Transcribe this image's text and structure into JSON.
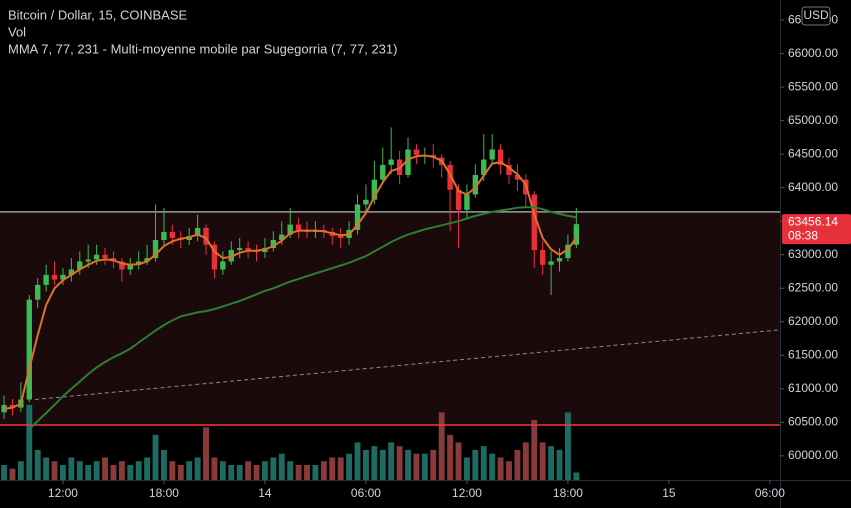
{
  "chart_data": {
    "type": "candlestick",
    "title": "Bitcoin / Dollar, 15, COINBASE",
    "legend_lines": [
      "Vol",
      "MMA 7, 77, 231 - Multi-moyenne mobile par Sugegorria (7, 77, 231)"
    ],
    "currency": "USD",
    "countdown": "08:38",
    "up_color": "#3cba54",
    "down_color": "#e8303a",
    "x": [
      8.5,
      9,
      9.5,
      10,
      10.5,
      11,
      11.5,
      12,
      12.5,
      13,
      13.5,
      14,
      14.5,
      15,
      15.5,
      16,
      16.5,
      17,
      17.5,
      18,
      18.5,
      19,
      19.5,
      20,
      20.5,
      21,
      21.5,
      22,
      22.5,
      23,
      23.5,
      24,
      24.5,
      25,
      25.5,
      26,
      26.5,
      27,
      27.5,
      28,
      28.5,
      29,
      29.5,
      30,
      30.5,
      31,
      31.5,
      32,
      32.5,
      33,
      33.5,
      34,
      34.5,
      35,
      35.5,
      36,
      36.5,
      37,
      37.5,
      38,
      38.5,
      39,
      39.5,
      40,
      40.5,
      41,
      41.5,
      42,
      42.5
    ],
    "open": [
      60650,
      60760,
      60720,
      60840,
      62330,
      62550,
      62700,
      62630,
      62700,
      62780,
      62900,
      62930,
      63000,
      62950,
      62900,
      62780,
      62850,
      62900,
      62950,
      63220,
      63340,
      63250,
      63220,
      63280,
      63400,
      63150,
      62780,
      62900,
      63070,
      63100,
      63070,
      63040,
      63100,
      63220,
      63300,
      63450,
      63370,
      63340,
      63370,
      63340,
      63280,
      63250,
      63370,
      63750,
      63820,
      64120,
      64340,
      64420,
      64190,
      64570,
      64490,
      64490,
      64450,
      64340,
      63970,
      63670,
      63900,
      64190,
      64420,
      64570,
      64340,
      64190,
      64120,
      63900,
      63070,
      62850,
      62900,
      62950,
      63150
    ],
    "high": [
      60900,
      60850,
      61100,
      62400,
      62650,
      62850,
      62900,
      62800,
      62950,
      63050,
      63150,
      63150,
      63100,
      63050,
      62950,
      62950,
      63050,
      63150,
      63750,
      63700,
      63450,
      63350,
      63400,
      63600,
      63450,
      63200,
      63050,
      63200,
      63250,
      63200,
      63150,
      63250,
      63350,
      63500,
      63700,
      63550,
      63500,
      63500,
      63450,
      63400,
      63400,
      63500,
      63900,
      64050,
      64400,
      64600,
      64900,
      64550,
      64750,
      64650,
      64600,
      64650,
      64500,
      64400,
      64050,
      64050,
      64350,
      64800,
      64800,
      64650,
      64450,
      64350,
      64200,
      63950,
      63200,
      63050,
      63100,
      63300,
      63700
    ],
    "low": [
      60550,
      60600,
      60650,
      60800,
      62200,
      62450,
      62550,
      62550,
      62600,
      62700,
      62800,
      62850,
      62850,
      62800,
      62600,
      62700,
      62780,
      62850,
      62900,
      63150,
      63150,
      63100,
      63150,
      63200,
      63000,
      62650,
      62700,
      62850,
      62950,
      62950,
      62900,
      62950,
      63050,
      63150,
      63250,
      63250,
      63250,
      63250,
      63250,
      63150,
      63100,
      63150,
      63300,
      63650,
      63750,
      64050,
      64200,
      64050,
      64150,
      64350,
      64350,
      64300,
      64150,
      63350,
      63100,
      63550,
      63850,
      64100,
      64350,
      64200,
      64050,
      63950,
      63700,
      62800,
      62700,
      62400,
      62750,
      62900,
      63100
    ],
    "close": [
      60760,
      60720,
      60840,
      62330,
      62550,
      62700,
      62630,
      62700,
      62780,
      62900,
      62930,
      63000,
      62950,
      62900,
      62780,
      62850,
      62900,
      62950,
      63220,
      63340,
      63250,
      63220,
      63280,
      63400,
      63150,
      62780,
      62900,
      63070,
      63100,
      63070,
      63040,
      63100,
      63220,
      63300,
      63450,
      63370,
      63340,
      63370,
      63340,
      63280,
      63250,
      63370,
      63750,
      63820,
      64120,
      64340,
      64420,
      64190,
      64570,
      64490,
      64490,
      64450,
      64340,
      63970,
      63670,
      63900,
      64190,
      64420,
      64570,
      64340,
      64190,
      64120,
      63900,
      63070,
      62850,
      62900,
      62950,
      63150,
      63456.14
    ],
    "volume": {
      "ylim": [
        0,
        125
      ],
      "values": [
        20,
        15,
        25,
        100,
        40,
        30,
        25,
        20,
        30,
        25,
        20,
        25,
        30,
        20,
        25,
        20,
        25,
        30,
        60,
        40,
        25,
        20,
        25,
        30,
        70,
        30,
        25,
        20,
        20,
        25,
        20,
        25,
        30,
        35,
        25,
        20,
        20,
        20,
        25,
        30,
        30,
        35,
        50,
        40,
        45,
        40,
        50,
        45,
        40,
        35,
        35,
        40,
        90,
        60,
        50,
        30,
        40,
        45,
        35,
        30,
        25,
        40,
        50,
        80,
        50,
        45,
        40,
        90,
        10
      ],
      "up_color": "#1e6b63",
      "down_color": "#8a3a3a"
    },
    "series": [
      {
        "color": "#e0702a",
        "values": [
          60700,
          60720,
          60780,
          61300,
          61800,
          62250,
          62500,
          62620,
          62700,
          62780,
          62850,
          62910,
          62930,
          62920,
          62870,
          62850,
          62860,
          62900,
          63000,
          63130,
          63200,
          63240,
          63260,
          63300,
          63250,
          63050,
          62950,
          62970,
          63030,
          63060,
          63060,
          63080,
          63130,
          63210,
          63320,
          63360,
          63360,
          63360,
          63350,
          63320,
          63290,
          63300,
          63450,
          63620,
          63860,
          64080,
          64250,
          64290,
          64420,
          64470,
          64480,
          64460,
          64400,
          64200,
          63950,
          63900,
          64000,
          64180,
          64360,
          64380,
          64300,
          64200,
          64050,
          63600,
          63250,
          63080,
          63000,
          63080,
          63250
        ]
      },
      {
        "color": "#2e7d32",
        "values": [
          null,
          null,
          null,
          60400,
          60520,
          60640,
          60760,
          60890,
          61000,
          61110,
          61220,
          61320,
          61400,
          61470,
          61530,
          61600,
          61690,
          61780,
          61870,
          61950,
          62020,
          62080,
          62110,
          62140,
          62160,
          62190,
          62230,
          62270,
          62310,
          62360,
          62410,
          62460,
          62500,
          62550,
          62600,
          62640,
          62680,
          62720,
          62760,
          62800,
          62840,
          62880,
          62930,
          62980,
          63050,
          63120,
          63190,
          63250,
          63300,
          63340,
          63380,
          63410,
          63440,
          63470,
          63500,
          63540,
          63580,
          63610,
          63640,
          63660,
          63680,
          63700,
          63710,
          63710,
          63680,
          63640,
          63610,
          63580,
          63560
        ]
      }
    ],
    "hlines": [
      {
        "value": 63640,
        "color": "#9e9e9e"
      },
      {
        "value": 60460,
        "color": "#f23645"
      }
    ],
    "zone_color": "#1a0a0c",
    "trendline": {
      "x": [
        10.34,
        54.6
      ],
      "y": [
        60840,
        61880
      ],
      "color": "#8a8a8a"
    },
    "xlim": [
      8.26,
      54.6
    ],
    "ylim": [
      59640,
      66800
    ],
    "xticks": [
      {
        "value": 12,
        "label": "12:00"
      },
      {
        "value": 18,
        "label": "18:00"
      },
      {
        "value": 24,
        "label": "14"
      },
      {
        "value": 30,
        "label": "06:00"
      },
      {
        "value": 36,
        "label": "12:00"
      },
      {
        "value": 42,
        "label": "18:00"
      },
      {
        "value": 48,
        "label": "15"
      },
      {
        "value": 54,
        "label": "06:00"
      }
    ],
    "yticks": [
      {
        "value": 60000,
        "label": "60000.00"
      },
      {
        "value": 60500,
        "label": "60500.00"
      },
      {
        "value": 61000,
        "label": "61000.00"
      },
      {
        "value": 61500,
        "label": "61500.00"
      },
      {
        "value": 62000,
        "label": "62000.00"
      },
      {
        "value": 62500,
        "label": "62500.00"
      },
      {
        "value": 63000,
        "label": "63000.00"
      },
      {
        "value": 63500,
        "label": "63500.00"
      },
      {
        "value": 64000,
        "label": "64000.00"
      },
      {
        "value": 64500,
        "label": "64500.00"
      },
      {
        "value": 65000,
        "label": "65000.00"
      },
      {
        "value": 65500,
        "label": "65500.00"
      },
      {
        "value": 66000,
        "label": "66000.00"
      },
      {
        "value": 66500,
        "label": "66500.00"
      }
    ]
  }
}
